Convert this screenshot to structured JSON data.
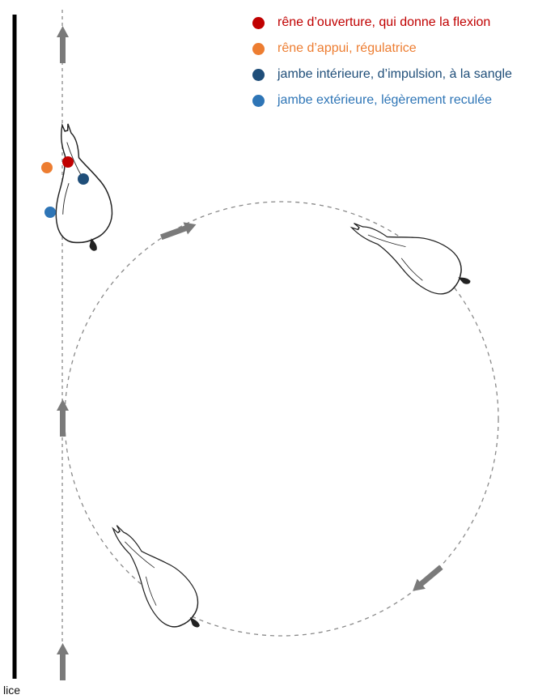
{
  "legend": [
    {
      "label": "rêne d’ouverture, qui donne la flexion",
      "color": "#c00000"
    },
    {
      "label": "rêne d’appui, régulatrice",
      "color": "#ed7d31"
    },
    {
      "label": "jambe intérieure, d’impulsion, à la sangle",
      "color": "#1f4e79"
    },
    {
      "label": "jambe extérieure, légèrement reculée",
      "color": "#2e75b6"
    }
  ],
  "wall_label": "lice",
  "colors": {
    "wall": "#000000",
    "track": "#8a8a8a",
    "arrow": "#7a7a7a",
    "horse_outline": "#222222"
  }
}
